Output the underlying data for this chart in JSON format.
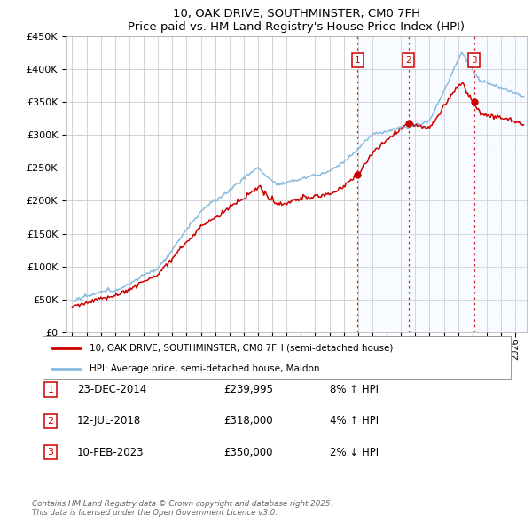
{
  "title": "10, OAK DRIVE, SOUTHMINSTER, CM0 7FH",
  "subtitle": "Price paid vs. HM Land Registry's House Price Index (HPI)",
  "ylim": [
    0,
    450000
  ],
  "xlim_start": 1994.6,
  "xlim_end": 2026.8,
  "red_line_color": "#cc0000",
  "blue_line_color": "#88bbdd",
  "grid_color": "#cccccc",
  "bg_color": "#ffffff",
  "shade_color": "#ddeeff",
  "legend_label_red": "10, OAK DRIVE, SOUTHMINSTER, CM0 7FH (semi-detached house)",
  "legend_label_blue": "HPI: Average price, semi-detached house, Maldon",
  "transactions": [
    {
      "label": "1",
      "date_str": "23-DEC-2014",
      "price": 239995,
      "pct": "8%",
      "direction": "↑",
      "year": 2014.97
    },
    {
      "label": "2",
      "date_str": "12-JUL-2018",
      "price": 318000,
      "pct": "4%",
      "direction": "↑",
      "year": 2018.53
    },
    {
      "label": "3",
      "date_str": "10-FEB-2023",
      "price": 350000,
      "pct": "2%",
      "direction": "↓",
      "year": 2023.11
    }
  ],
  "footer": "Contains HM Land Registry data © Crown copyright and database right 2025.\nThis data is licensed under the Open Government Licence v3.0.",
  "yticks": [
    0,
    50000,
    100000,
    150000,
    200000,
    250000,
    300000,
    350000,
    400000,
    450000
  ],
  "ytick_labels": [
    "£0",
    "£50K",
    "£100K",
    "£150K",
    "£200K",
    "£250K",
    "£300K",
    "£350K",
    "£400K",
    "£450K"
  ]
}
